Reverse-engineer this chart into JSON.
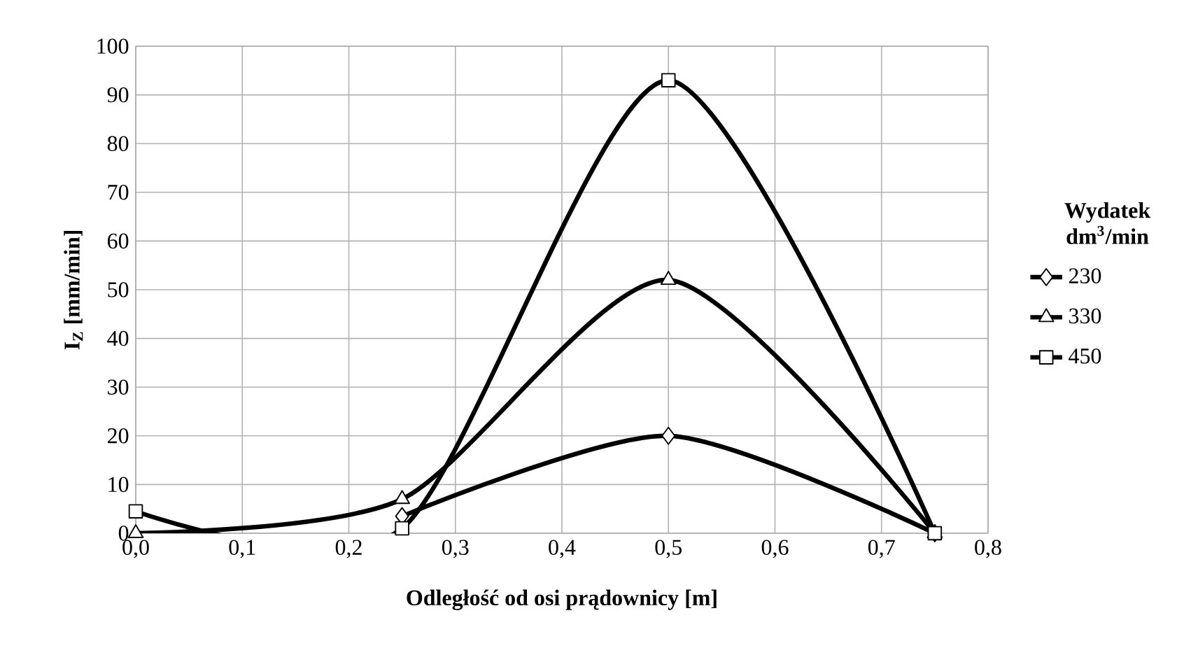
{
  "chart_data": {
    "type": "line",
    "xlabel": "Odległość od osi prądownicy [m]",
    "ylabel": "I$_{Z}$ [mm/min]",
    "legend_title": "Wydatek dm$^{3}$/min",
    "x": [
      0.0,
      0.25,
      0.5,
      0.75
    ],
    "series": [
      {
        "name": "230",
        "color": "#000000",
        "marker": "diamond",
        "values": [
          null,
          3.5,
          20,
          0
        ]
      },
      {
        "name": "330",
        "color": "#000000",
        "marker": "triangle",
        "values": [
          0,
          7,
          52,
          0
        ]
      },
      {
        "name": "450",
        "color": "#000000",
        "marker": "square",
        "values": [
          4.5,
          1,
          93,
          0
        ]
      }
    ],
    "xlim": [
      0,
      0.8
    ],
    "ylim": [
      0,
      100
    ],
    "xticks": [
      {
        "value": 0,
        "label": "0,0"
      },
      {
        "value": 0.1,
        "label": "0,1"
      },
      {
        "value": 0.2,
        "label": "0,2"
      },
      {
        "value": 0.3,
        "label": "0,3"
      },
      {
        "value": 0.4,
        "label": "0,4"
      },
      {
        "value": 0.5,
        "label": "0,5"
      },
      {
        "value": 0.6,
        "label": "0,6"
      },
      {
        "value": 0.7,
        "label": "0,7"
      },
      {
        "value": 0.8,
        "label": "0,8"
      }
    ],
    "yticks": [
      0,
      10,
      20,
      30,
      40,
      50,
      60,
      70,
      80,
      90,
      100
    ],
    "grid": true,
    "legend": "right",
    "line_style": "solid"
  }
}
